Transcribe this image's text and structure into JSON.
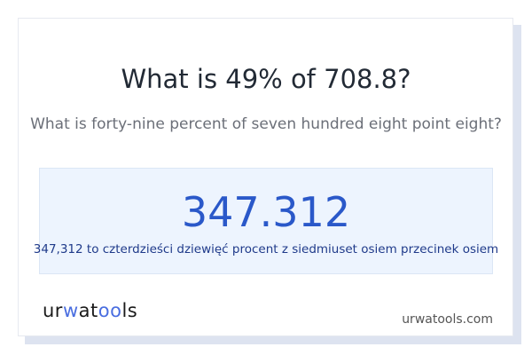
{
  "title": "What is 49% of 708.8?",
  "subtitle": "What is forty-nine percent of seven hundred eight point eight?",
  "result": "347.312",
  "result_words": "347,312 to czterdzieści dziewięć procent z siedmiuset osiem przecinek osiem",
  "logo": {
    "part1": "ur",
    "part2": "w",
    "part3": "at",
    "part4": "oo",
    "part5": "ls"
  },
  "site": "urwatools.com"
}
